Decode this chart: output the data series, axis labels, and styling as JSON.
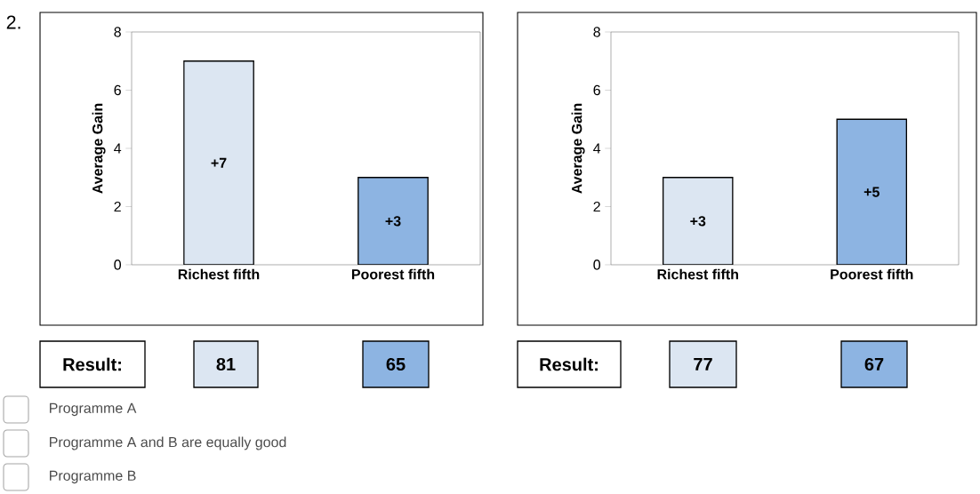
{
  "chart_data": [
    {
      "type": "bar",
      "categories": [
        "Richest fifth",
        "Poorest fifth"
      ],
      "values": [
        7,
        3
      ],
      "colors": [
        "#dce6f2",
        "#8db4e2"
      ],
      "ylabel": "Average Gain",
      "ylim": [
        0,
        8
      ],
      "yticks": [
        0,
        2,
        4,
        6,
        8
      ],
      "value_labels": [
        "+7",
        "+3"
      ],
      "annotations": [
        "Result:",
        "81",
        "65"
      ]
    },
    {
      "type": "bar",
      "categories": [
        "Richest fifth",
        "Poorest fifth"
      ],
      "values": [
        3,
        5
      ],
      "colors": [
        "#dce6f2",
        "#8db4e2"
      ],
      "ylabel": "Average Gain",
      "ylim": [
        0,
        8
      ],
      "yticks": [
        0,
        2,
        4,
        6,
        8
      ],
      "value_labels": [
        "+3",
        "+5"
      ],
      "annotations": [
        "Result:",
        "77",
        "67"
      ]
    },
    {
      "type": "other",
      "annotations": [
        "2.",
        "Programme A",
        "Programme A and B are equally good",
        "Programme B"
      ]
    }
  ]
}
